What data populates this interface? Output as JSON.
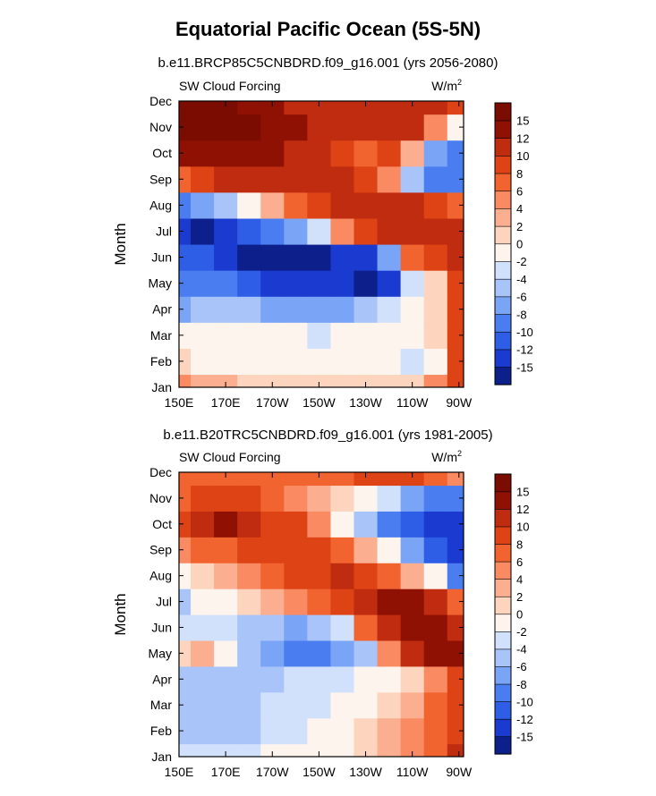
{
  "figure": {
    "title": "Equatorial Pacific Ocean (5S-5N)"
  },
  "chart_data": [
    {
      "type": "heatmap",
      "title": "b.e11.BRCP85C5CNBDRD.f09_g16.001 (yrs 2056-2080)",
      "left_label": "SW Cloud Forcing",
      "units": "W/m",
      "units_sup": "2",
      "ylabel": "Month",
      "xlabel": "",
      "x_tick_labels": [
        "150E",
        "170E",
        "170W",
        "150W",
        "130W",
        "110W",
        "90W"
      ],
      "y_tick_labels": [
        "Jan",
        "Feb",
        "Mar",
        "Apr",
        "May",
        "Jun",
        "Jul",
        "Aug",
        "Sep",
        "Oct",
        "Nov",
        "Dec"
      ],
      "x": [
        150,
        160,
        170,
        180,
        190,
        200,
        210,
        220,
        230,
        240,
        250,
        260,
        270
      ],
      "y": [
        "Jan",
        "Feb",
        "Mar",
        "Apr",
        "May",
        "Jun",
        "Jul",
        "Aug",
        "Sep",
        "Oct",
        "Nov",
        "Dec"
      ],
      "xlim": [
        150,
        272
      ],
      "z": [
        [
          4,
          3,
          2,
          1,
          1,
          1,
          1,
          0,
          0,
          1,
          0,
          4,
          8
        ],
        [
          1,
          -1,
          -1,
          -2,
          -2,
          -2,
          -1,
          -2,
          -2,
          -2,
          -4,
          -1,
          8
        ],
        [
          -2,
          -2,
          -2,
          -2,
          -2,
          -2,
          -3,
          -2,
          -2,
          -2,
          -2,
          0,
          8
        ],
        [
          -8,
          -6,
          -6,
          -6,
          -8,
          -8,
          -8,
          -8,
          -6,
          -4,
          -2,
          0,
          8
        ],
        [
          -10,
          -10,
          -10,
          -12,
          -14,
          -15,
          -15,
          -15,
          -16,
          -15,
          -4,
          0,
          8
        ],
        [
          -12,
          -12,
          -13,
          -16,
          -16,
          -16,
          -16,
          -15,
          -14,
          -8,
          6,
          8,
          10
        ],
        [
          -14,
          -16,
          -14,
          -12,
          -10,
          -8,
          -4,
          4,
          8,
          10,
          10,
          10,
          10
        ],
        [
          -10,
          -8,
          -6,
          -2,
          2,
          6,
          8,
          10,
          10,
          10,
          10,
          8,
          6
        ],
        [
          6,
          8,
          10,
          10,
          10,
          10,
          10,
          10,
          8,
          4,
          -6,
          -10,
          -10
        ],
        [
          12,
          12,
          12,
          12,
          12,
          10,
          10,
          8,
          6,
          8,
          2,
          -8,
          -10
        ],
        [
          16,
          16,
          16,
          16,
          14,
          12,
          10,
          10,
          10,
          10,
          10,
          4,
          -2
        ],
        [
          16,
          16,
          16,
          14,
          12,
          10,
          10,
          10,
          10,
          10,
          10,
          10,
          8
        ]
      ],
      "levels": [
        -15,
        -12,
        -10,
        -8,
        -6,
        -4,
        -2,
        0,
        2,
        4,
        6,
        8,
        10,
        12,
        15
      ],
      "colorbar_labels": [
        "15",
        "12",
        "10",
        "8",
        "6",
        "4",
        "2",
        "0",
        "-2",
        "-4",
        "-6",
        "-8",
        "-10",
        "-12",
        "-15"
      ]
    },
    {
      "type": "heatmap",
      "title": "b.e11.B20TRC5CNBDRD.f09_g16.001 (yrs 1981-2005)",
      "left_label": "SW Cloud Forcing",
      "units": "W/m",
      "units_sup": "2",
      "ylabel": "Month",
      "xlabel": "",
      "x_tick_labels": [
        "150E",
        "170E",
        "170W",
        "150W",
        "130W",
        "110W",
        "90W"
      ],
      "y_tick_labels": [
        "Jan",
        "Feb",
        "Mar",
        "Apr",
        "May",
        "Jun",
        "Jul",
        "Aug",
        "Sep",
        "Oct",
        "Nov",
        "Dec"
      ],
      "x": [
        150,
        160,
        170,
        180,
        190,
        200,
        210,
        220,
        230,
        240,
        250,
        260,
        270
      ],
      "y": [
        "Jan",
        "Feb",
        "Mar",
        "Apr",
        "May",
        "Jun",
        "Jul",
        "Aug",
        "Sep",
        "Oct",
        "Nov",
        "Dec"
      ],
      "xlim": [
        150,
        272
      ],
      "z": [
        [
          -4,
          -4,
          -4,
          -3,
          -2,
          -2,
          -2,
          -1,
          0,
          2,
          4,
          6,
          10
        ],
        [
          -6,
          -6,
          -6,
          -5,
          -4,
          -3,
          -2,
          -1,
          0,
          2,
          4,
          6,
          8
        ],
        [
          -6,
          -6,
          -6,
          -5,
          -4,
          -4,
          -3,
          -2,
          -1,
          0,
          2,
          6,
          8
        ],
        [
          -6,
          -6,
          -6,
          -5,
          -5,
          -4,
          -4,
          -3,
          -2,
          -1,
          0,
          4,
          8
        ],
        [
          1,
          2,
          -2,
          -6,
          -8,
          -10,
          -10,
          -8,
          -6,
          4,
          10,
          12,
          14
        ],
        [
          -4,
          -4,
          -4,
          -6,
          -6,
          -7,
          -6,
          -4,
          6,
          10,
          12,
          12,
          10
        ],
        [
          -6,
          -2,
          -1,
          0,
          2,
          4,
          6,
          8,
          10,
          12,
          12,
          10,
          6
        ],
        [
          -2,
          1,
          2,
          4,
          6,
          8,
          8,
          10,
          8,
          6,
          2,
          -2,
          -10
        ],
        [
          4,
          6,
          6,
          8,
          8,
          8,
          8,
          6,
          2,
          -2,
          -8,
          -12,
          -14
        ],
        [
          8,
          10,
          12,
          10,
          8,
          8,
          4,
          -2,
          -6,
          -10,
          -12,
          -14,
          -14
        ],
        [
          6,
          8,
          8,
          8,
          6,
          4,
          2,
          1,
          -2,
          -4,
          -8,
          -10,
          -10
        ],
        [
          6,
          6,
          6,
          6,
          6,
          6,
          6,
          6,
          8,
          8,
          8,
          6,
          4
        ]
      ],
      "levels": [
        -15,
        -12,
        -10,
        -8,
        -6,
        -4,
        -2,
        0,
        2,
        4,
        6,
        8,
        10,
        12,
        15
      ],
      "colorbar_labels": [
        "15",
        "12",
        "10",
        "8",
        "6",
        "4",
        "2",
        "0",
        "-2",
        "-4",
        "-6",
        "-8",
        "-10",
        "-12",
        "-15"
      ]
    }
  ],
  "colors": {
    "palette": [
      "#0c1f8a",
      "#1a3ad0",
      "#2e5ee6",
      "#4a7ef0",
      "#7aa4f6",
      "#a9c4f8",
      "#d2e1fb",
      "#fdf4ee",
      "#fdd4be",
      "#fcae90",
      "#f98a62",
      "#f2642f",
      "#dd4314",
      "#bf2c0f",
      "#8e1104",
      "#7a0c02"
    ]
  }
}
